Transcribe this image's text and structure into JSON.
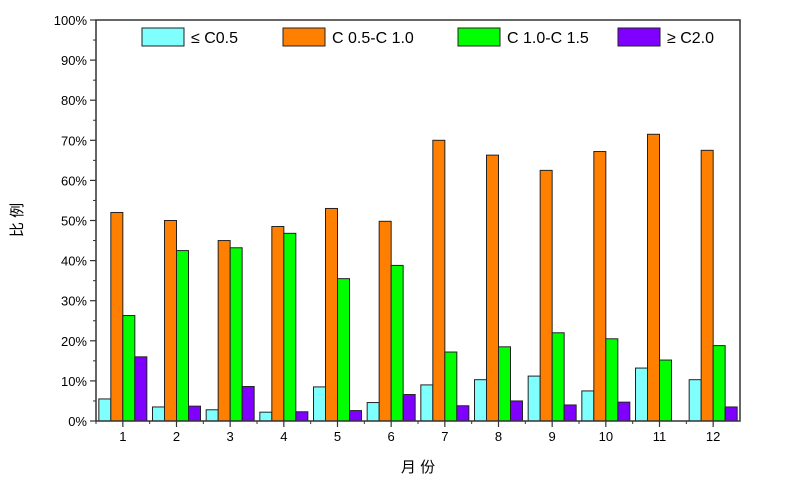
{
  "chart_data": {
    "type": "bar",
    "title": "",
    "xlabel": "月 份",
    "ylabel": "比 例",
    "ylim": [
      0,
      100
    ],
    "yticks": [
      "0%",
      "10%",
      "20%",
      "30%",
      "40%",
      "50%",
      "60%",
      "70%",
      "80%",
      "90%",
      "100%"
    ],
    "categories": [
      "1",
      "2",
      "3",
      "4",
      "5",
      "6",
      "7",
      "8",
      "9",
      "10",
      "11",
      "12"
    ],
    "legend_position": "top",
    "series": [
      {
        "name": "≤ C0.5",
        "color": "#80ffff",
        "values": [
          5.5,
          3.5,
          2.8,
          2.2,
          8.5,
          4.6,
          9.0,
          10.3,
          11.2,
          7.5,
          13.2,
          10.3
        ]
      },
      {
        "name": "C 0.5-C 1.0",
        "color": "#ff8000",
        "values": [
          52.0,
          50.0,
          45.0,
          48.5,
          53.0,
          49.8,
          70.0,
          66.3,
          62.5,
          67.2,
          71.5,
          67.5
        ]
      },
      {
        "name": "C 1.0-C 1.5",
        "color": "#00ff00",
        "values": [
          26.3,
          42.5,
          43.2,
          46.8,
          35.5,
          38.8,
          17.2,
          18.5,
          22.0,
          20.5,
          15.2,
          18.8
        ]
      },
      {
        "name": "≥ C2.0",
        "color": "#8000ff",
        "values": [
          16.0,
          3.7,
          8.6,
          2.3,
          2.6,
          6.6,
          3.8,
          5.0,
          4.0,
          4.7,
          0,
          3.5
        ]
      }
    ]
  }
}
